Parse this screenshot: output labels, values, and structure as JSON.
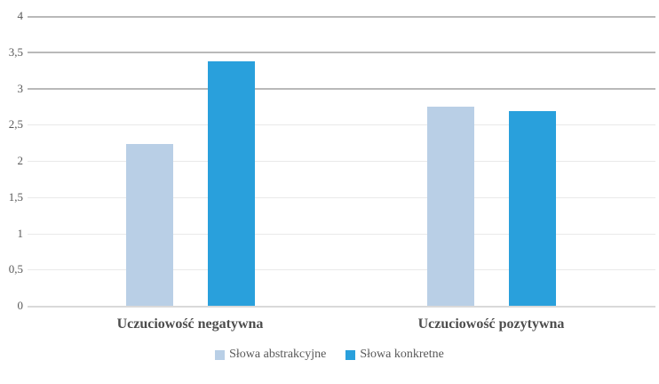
{
  "chart_data": {
    "type": "bar",
    "title": "",
    "categories": [
      "Uczuciowość negatywna",
      "Uczuciowość pozytywna"
    ],
    "series": [
      {
        "name": "Słowa abstrakcyjne",
        "values": [
          2.23,
          2.75
        ],
        "color": "#b9cfe6"
      },
      {
        "name": "Słowa konkretne",
        "values": [
          3.38,
          2.69
        ],
        "color": "#29a0dc"
      }
    ],
    "xlabel": "",
    "ylabel": "",
    "ylim": [
      0,
      4
    ],
    "ytick_values": [
      0,
      0.5,
      1,
      1.5,
      2,
      2.5,
      3,
      3.5,
      4
    ],
    "ytick_labels": [
      "0",
      "0,5",
      "1",
      "1,5",
      "2",
      "2,5",
      "3",
      "3,5",
      "4"
    ],
    "grid": "horizontal",
    "legend_position": "bottom",
    "colors": {
      "grid_dark": "#b9b9b9",
      "grid_light": "#e9e9e9",
      "axis_line": "#d9d9d9",
      "tick_text": "#595959",
      "category_text": "#4d4d4d",
      "legend_text": "#595959",
      "background": "#ffffff"
    }
  }
}
